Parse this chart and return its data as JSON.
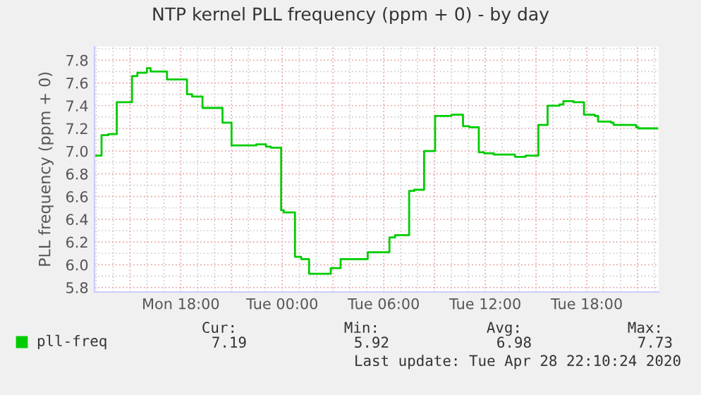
{
  "chart_data": {
    "type": "step",
    "title": "NTP kernel PLL frequency (ppm + 0) - by day",
    "ylabel": "PLL frequency (ppm + 0)",
    "x": [
      "2020-04-27T12:56",
      "2020-04-27T13:19",
      "2020-04-27T13:43",
      "2020-04-27T14:13",
      "2020-04-27T15:07",
      "2020-04-27T15:26",
      "2020-04-27T16:00",
      "2020-04-27T16:13",
      "2020-04-27T17:11",
      "2020-04-27T18:22",
      "2020-04-27T18:40",
      "2020-04-27T19:17",
      "2020-04-27T20:28",
      "2020-04-27T21:00",
      "2020-04-27T22:28",
      "2020-04-27T23:02",
      "2020-04-27T23:19",
      "2020-04-27T23:56",
      "2020-04-28T00:05",
      "2020-04-28T00:45",
      "2020-04-28T01:07",
      "2020-04-28T01:35",
      "2020-04-28T02:52",
      "2020-04-28T03:27",
      "2020-04-28T05:03",
      "2020-04-28T06:20",
      "2020-04-28T06:40",
      "2020-04-28T07:30",
      "2020-04-28T07:48",
      "2020-04-28T08:23",
      "2020-04-28T09:02",
      "2020-04-28T10:00",
      "2020-04-28T10:41",
      "2020-04-28T11:03",
      "2020-04-28T11:37",
      "2020-04-28T11:56",
      "2020-04-28T12:30",
      "2020-04-28T13:45",
      "2020-04-28T14:23",
      "2020-04-28T15:08",
      "2020-04-28T15:41",
      "2020-04-28T16:23",
      "2020-04-28T16:37",
      "2020-04-28T17:13",
      "2020-04-28T17:50",
      "2020-04-28T18:28",
      "2020-04-28T18:40",
      "2020-04-28T19:26",
      "2020-04-28T19:35",
      "2020-04-28T20:55",
      "2020-04-28T21:03",
      "2020-04-28T22:10"
    ],
    "series": [
      {
        "name": "pll-freq",
        "color": "#00cc00",
        "values": [
          6.96,
          7.14,
          7.15,
          7.43,
          7.66,
          7.69,
          7.73,
          7.7,
          7.63,
          7.5,
          7.48,
          7.38,
          7.25,
          7.05,
          7.06,
          7.04,
          7.03,
          6.48,
          6.46,
          6.07,
          6.05,
          5.92,
          5.97,
          6.05,
          6.11,
          6.24,
          6.26,
          6.65,
          6.66,
          7.0,
          7.31,
          7.32,
          7.22,
          7.21,
          6.99,
          6.98,
          6.97,
          6.95,
          6.96,
          7.23,
          7.4,
          7.41,
          7.44,
          7.43,
          7.32,
          7.31,
          7.26,
          7.25,
          7.23,
          7.21,
          7.2,
          7.2
        ]
      }
    ],
    "xlim": [
      "2020-04-27T12:54",
      "2020-04-28T22:15"
    ],
    "xticks": [
      {
        "value": "2020-04-27T15:00",
        "label": null
      },
      {
        "value": "2020-04-27T18:00",
        "label": "Mon 18:00"
      },
      {
        "value": "2020-04-27T21:00",
        "label": null
      },
      {
        "value": "2020-04-28T00:00",
        "label": "Tue 00:00"
      },
      {
        "value": "2020-04-28T03:00",
        "label": null
      },
      {
        "value": "2020-04-28T06:00",
        "label": "Tue 06:00"
      },
      {
        "value": "2020-04-28T09:00",
        "label": null
      },
      {
        "value": "2020-04-28T12:00",
        "label": "Tue 12:00"
      },
      {
        "value": "2020-04-28T15:00",
        "label": null
      },
      {
        "value": "2020-04-28T18:00",
        "label": "Tue 18:00"
      },
      {
        "value": "2020-04-28T21:00",
        "label": null
      }
    ],
    "ylim": [
      5.76,
      7.92
    ],
    "yticks": [
      5.8,
      {
        "value": 6,
        "label": "6.0"
      },
      6.2,
      6.4,
      6.6,
      6.8,
      {
        "value": 7,
        "label": "7.0"
      },
      7.2,
      7.4,
      7.6,
      7.8
    ],
    "grid": true,
    "legend": "bottom",
    "annotations": [
      "Cur:",
      "Min:",
      "Avg:",
      "Max:",
      "7.19",
      "5.92",
      "6.98",
      "7.73",
      "Last update: Tue Apr 28 22:10:24 2020"
    ]
  }
}
